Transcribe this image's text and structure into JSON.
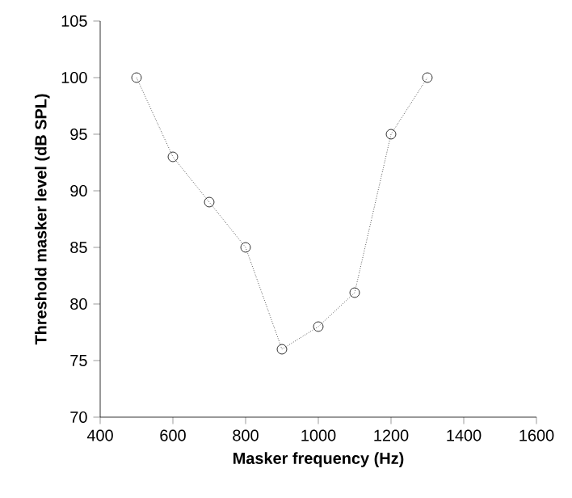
{
  "chart_data": {
    "type": "line",
    "xlabel": "Masker frequency (Hz)",
    "ylabel": "Threshold masker level (dB SPL)",
    "x": [
      500,
      600,
      700,
      800,
      900,
      1000,
      1100,
      1200,
      1300
    ],
    "series": [
      {
        "color": "#000000",
        "values": [
          100,
          93,
          89,
          85,
          76,
          78,
          81,
          95,
          100
        ]
      }
    ],
    "xlim": [
      400,
      1600
    ],
    "xticks": [
      400,
      600,
      800,
      1000,
      1200,
      1400,
      1600
    ],
    "ylim": [
      70,
      105
    ],
    "yticks": [
      70,
      75,
      80,
      85,
      90,
      95,
      100,
      105
    ],
    "marker": "circle",
    "line_style": "dotted",
    "grid": false
  }
}
